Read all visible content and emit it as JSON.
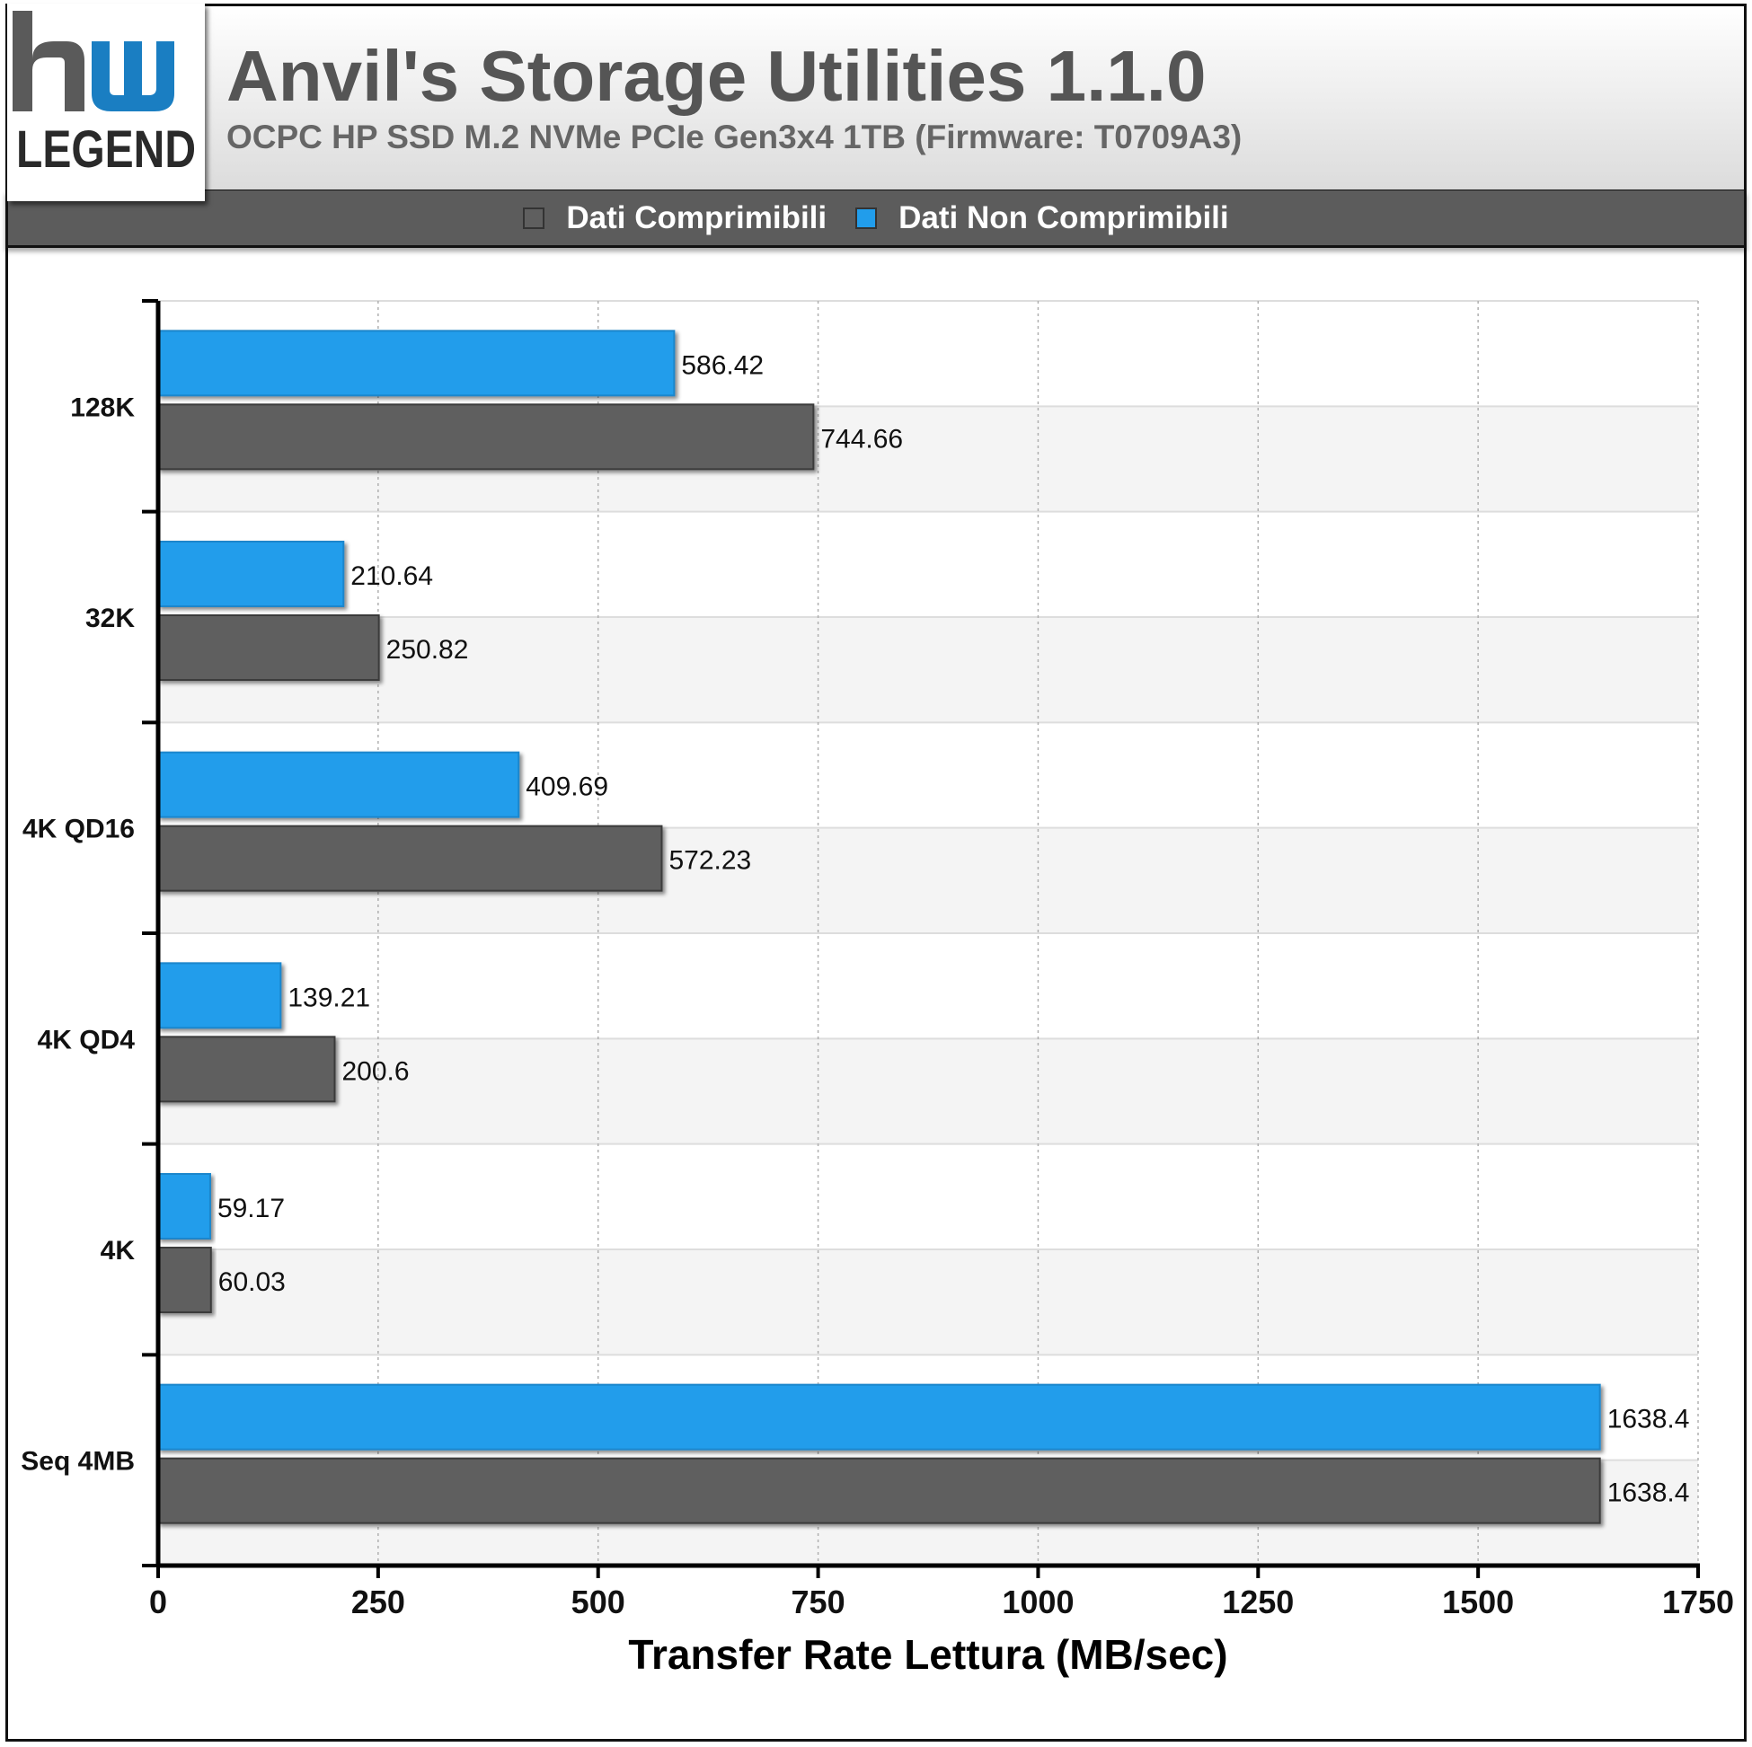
{
  "header": {
    "logo_top": "hw",
    "logo_bottom": "LEGEND",
    "title": "Anvil's Storage Utilities 1.1.0",
    "subtitle": "OCPC HP SSD M.2 NVMe PCIe Gen3x4 1TB (Firmware: T0709A3)"
  },
  "colors": {
    "blue": "#219DEB",
    "gray": "#5F5F5F",
    "logo_blue": "#1A7EC2",
    "logo_gray": "#5A5A5A"
  },
  "chart_data": {
    "type": "bar",
    "orientation": "horizontal",
    "title": "Anvil's Storage Utilities 1.1.0",
    "subtitle": "OCPC HP SSD M.2 NVMe PCIe Gen3x4 1TB (Firmware: T0709A3)",
    "categories": [
      "128K",
      "32K",
      "4K QD16",
      "4K QD4",
      "4K",
      "Seq 4MB"
    ],
    "series": [
      {
        "name": "Dati Non Comprimibili",
        "color": "#219DEB",
        "values": [
          586.42,
          210.64,
          409.69,
          139.21,
          59.17,
          1638.4
        ],
        "labels": [
          "586.42",
          "210.64",
          "409.69",
          "139.21",
          "59.17",
          "1638.4"
        ]
      },
      {
        "name": "Dati Comprimibili",
        "color": "#5F5F5F",
        "values": [
          744.66,
          250.82,
          572.23,
          200.6,
          60.03,
          1638.4
        ],
        "labels": [
          "744.66",
          "250.82",
          "572.23",
          "200.6",
          "60.03",
          "1638.4"
        ]
      }
    ],
    "legend": [
      "Dati Comprimibili",
      "Dati Non Comprimibili"
    ],
    "xlabel": "Transfer Rate Lettura (MB/sec)",
    "ylabel": "",
    "xlim": [
      0,
      1750
    ],
    "xticks": [
      0,
      250,
      500,
      750,
      1000,
      1250,
      1500,
      1750
    ],
    "grid": "vertical dashed",
    "legend_position": "top"
  }
}
